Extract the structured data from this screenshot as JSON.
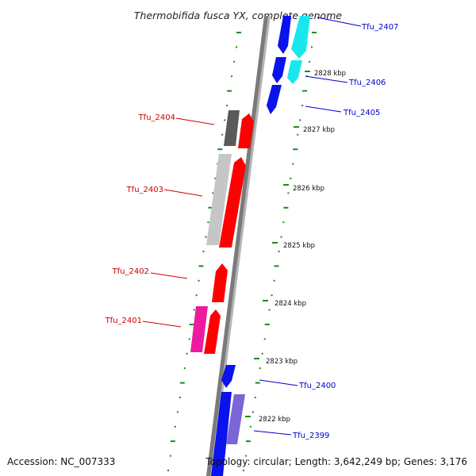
{
  "title": "Thermobifida fusca YX, complete genome",
  "accession": "Accession: NC_007333",
  "topology": "Topology: circular; Length: 3,642,249 bp; Genes: 3,176",
  "colors": {
    "background": "#ffffff",
    "backbone": "#8c8c8c",
    "tick": "#1a8c1a",
    "reverse_label": "#cc0000",
    "forward_label": "#0000cc",
    "blue": "#0a12ee",
    "cyan": "#18e8ee",
    "red": "#ff0000",
    "dark_gray": "#5a5a5a",
    "light_gray": "#c6c6c6",
    "magenta": "#ee1a9e",
    "purple": "#7a66d6"
  },
  "scale": {
    "unit": "kbp",
    "labels": [
      "2828 kbp",
      "2827 kbp",
      "2826 kbp",
      "2825 kbp",
      "2824 kbp",
      "2823 kbp",
      "2822 kbp"
    ]
  },
  "genes_reverse": [
    {
      "name": "Tfu_2404"
    },
    {
      "name": "Tfu_2403"
    },
    {
      "name": "Tfu_2402"
    },
    {
      "name": "Tfu_2401"
    }
  ],
  "genes_forward": [
    {
      "name": "Tfu_2407"
    },
    {
      "name": "Tfu_2406"
    },
    {
      "name": "Tfu_2405"
    },
    {
      "name": "Tfu_2400"
    },
    {
      "name": "Tfu_2399"
    }
  ]
}
